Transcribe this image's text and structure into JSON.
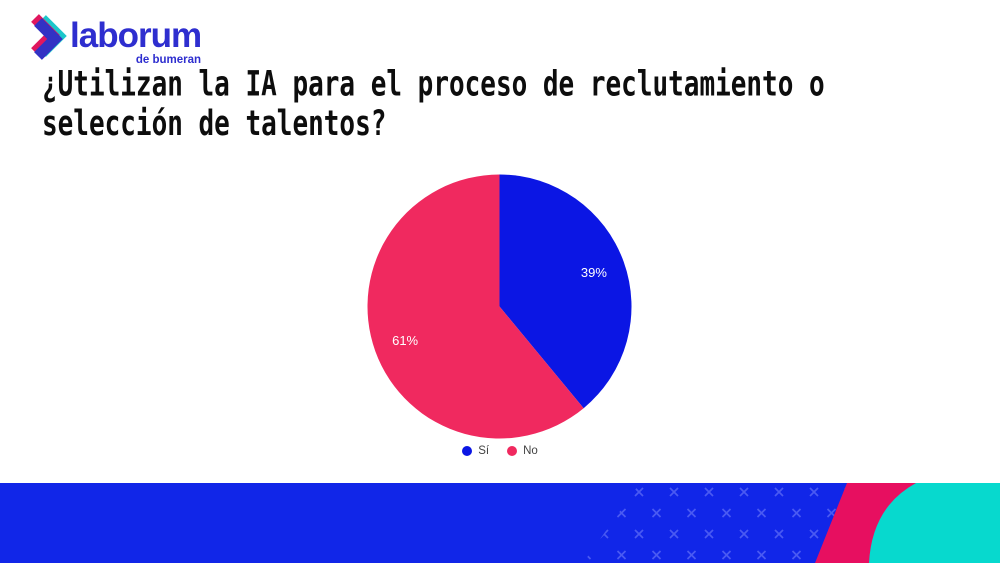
{
  "brand": {
    "logo_text": "laborum",
    "logo_tagline": "de bumeran",
    "logo_color": "#2e2ecf",
    "icon_colors": {
      "front_blue": "#3232c4",
      "pink": "#e0175e",
      "teal": "#1cc6cb"
    }
  },
  "title": {
    "line1": "¿Utilizan la IA para el proceso de reclutamiento o",
    "line2": "selección de talentos?"
  },
  "chart_data": {
    "type": "pie",
    "title": "¿Utilizan la IA para el proceso de reclutamiento o selección de talentos?",
    "categories": [
      "Sí",
      "No"
    ],
    "values": [
      39,
      61
    ],
    "labels": [
      "39%",
      "61%"
    ],
    "colors": [
      "#0b16e4",
      "#f0295f"
    ],
    "unit": "percent",
    "start_angle_deg": 0,
    "direction": "clockwise",
    "legend_position": "bottom",
    "label_color": "#ffffff"
  },
  "footer": {
    "band_blue": "#1126e8",
    "pattern_x_color": "#4a5af2",
    "stripe_pink": "#e70f60",
    "corner_teal": "#07d9ce"
  }
}
